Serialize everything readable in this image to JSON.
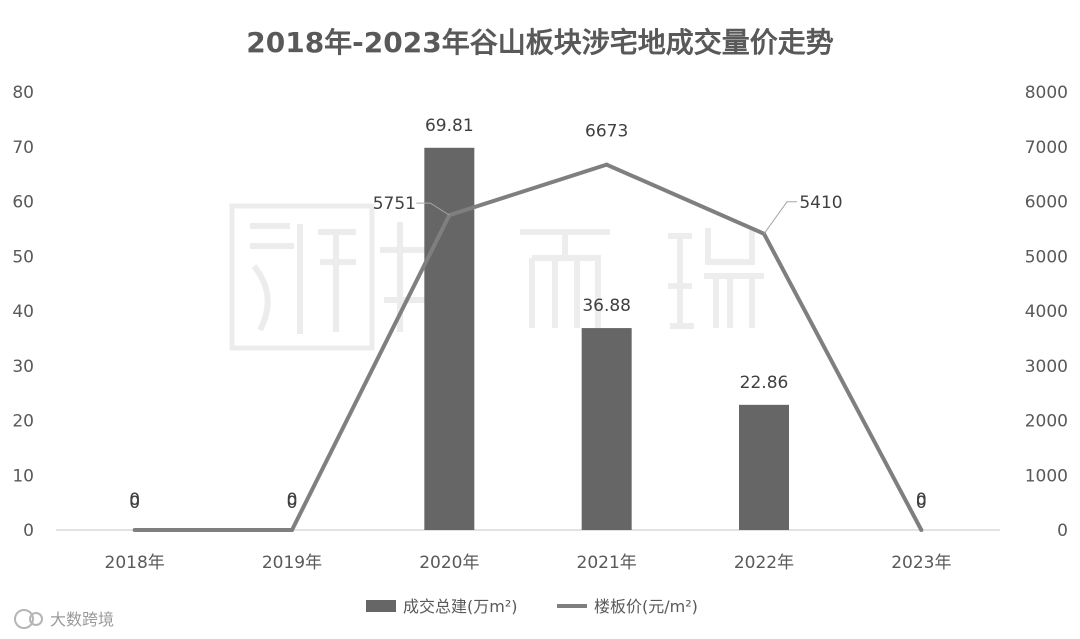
{
  "chart_data": {
    "type": "bar",
    "title": "2018年-2023年谷山板块涉宅地成交量价走势",
    "categories": [
      "2018年",
      "2019年",
      "2020年",
      "2021年",
      "2022年",
      "2023年"
    ],
    "y_left": {
      "min": 0,
      "max": 80,
      "step": 10,
      "ticks": [
        "0",
        "10",
        "20",
        "30",
        "40",
        "50",
        "60",
        "70",
        "80"
      ]
    },
    "y_right": {
      "min": 0,
      "max": 8000,
      "step": 1000,
      "ticks": [
        "0",
        "1000",
        "2000",
        "3000",
        "4000",
        "5000",
        "6000",
        "7000",
        "8000"
      ]
    },
    "series": [
      {
        "name": "成交总建(万m²)",
        "type": "bar",
        "axis": "left",
        "color": "#666666",
        "values": [
          0,
          0,
          69.81,
          36.88,
          22.86,
          0
        ],
        "labels": [
          "0",
          "0",
          "69.81",
          "36.88",
          "22.86",
          "0"
        ]
      },
      {
        "name": "楼板价(元/m²)",
        "type": "line",
        "axis": "right",
        "color": "#7f7f7f",
        "values": [
          0,
          0,
          5751,
          6673,
          5410,
          0
        ],
        "labels": [
          "0",
          "0",
          "5751",
          "6673",
          "5410",
          "0"
        ]
      }
    ],
    "legend_position": "bottom",
    "grid": false
  },
  "watermark": {
    "brand_text": "大数跨境"
  }
}
